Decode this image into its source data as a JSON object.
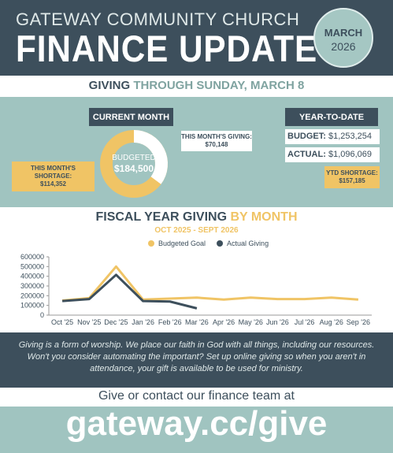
{
  "header": {
    "org": "GATEWAY COMMUNITY CHURCH",
    "title": "FINANCE UPDATE",
    "badge_month": "MARCH",
    "badge_year": "2026"
  },
  "giving_banner": {
    "lead": "GIVING",
    "rest": "THROUGH SUNDAY, MARCH 8"
  },
  "current_month": {
    "heading": "CURRENT MONTH",
    "donut_label": "BUDGETED",
    "budgeted": "$184,500",
    "giving_label": "THIS MONTH'S GIVING:",
    "giving": "$70,148",
    "shortage_label": "THIS MONTH'S SHORTAGE:",
    "shortage": "$114,352"
  },
  "year_to_date": {
    "heading": "YEAR-TO-DATE",
    "budget_label": "BUDGET:",
    "budget": "$1,253,254",
    "actual_label": "ACTUAL:",
    "actual": "$1,096,069",
    "shortage_label": "YTD SHORTAGE:",
    "shortage": "$157,185"
  },
  "chart_data": {
    "type": "line",
    "title": "FISCAL YEAR GIVING",
    "title_highlight": "BY MONTH",
    "subtitle": "OCT 2025 - SEPT 2026",
    "categories": [
      "Oct '25",
      "Nov '25",
      "Dec '25",
      "Jan '26",
      "Feb '26",
      "Mar '26",
      "Apr '26",
      "May '26",
      "Jun '26",
      "Jul '26",
      "Aug '26",
      "Sep '26"
    ],
    "series": [
      {
        "name": "Budgeted Goal",
        "color": "#f0c465",
        "values": [
          150000,
          175000,
          500000,
          160000,
          170000,
          180000,
          160000,
          180000,
          165000,
          165000,
          180000,
          160000
        ]
      },
      {
        "name": "Actual Giving",
        "color": "#3d4f5c",
        "values": [
          145000,
          165000,
          415000,
          145000,
          140000,
          70000,
          null,
          null,
          null,
          null,
          null,
          null
        ]
      }
    ],
    "ylim": [
      0,
      600000
    ],
    "yticks": [
      0,
      100000,
      200000,
      300000,
      400000,
      500000,
      600000
    ],
    "grid": false,
    "legend": "top"
  },
  "footer": {
    "message": "Giving is a form of worship. We place our faith in God with all things, including our resources. Won't you consider automating the important? Set up online giving so when you aren't in attendance, your gift is available to be used for ministry.",
    "cta": "Give or contact our finance team at",
    "url": "gateway.cc/give"
  }
}
